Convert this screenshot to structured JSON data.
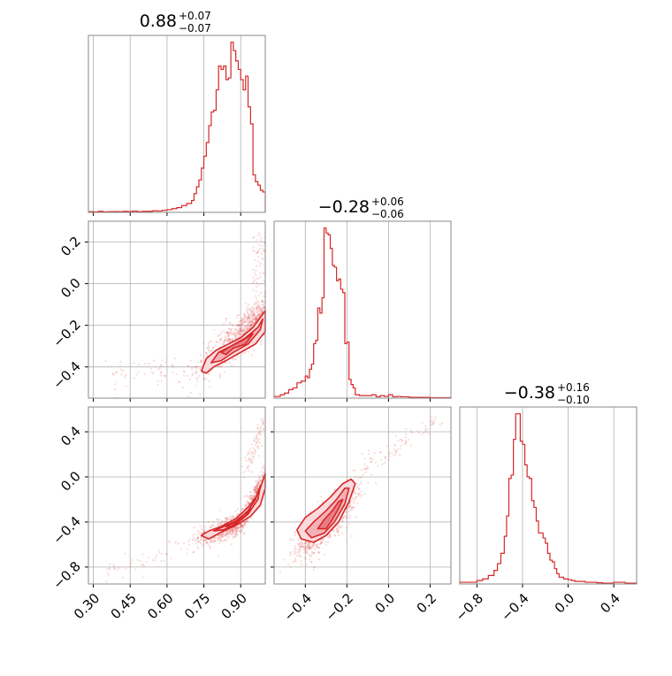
{
  "figure": {
    "panel_titles": [
      {
        "value": "0.88",
        "plus": "+0.07",
        "minus": "−0.07"
      },
      {
        "value": "−0.28",
        "plus": "+0.06",
        "minus": "−0.06"
      },
      {
        "value": "−0.38",
        "plus": "+0.16",
        "minus": "−0.10"
      }
    ],
    "colors": {
      "accent": "#d62728",
      "fill": "#f2b5b8",
      "grid": "#b0b0b0",
      "frame": "#888888"
    },
    "grid": true
  },
  "chart_data": [
    {
      "type": "histogram",
      "panel": "p1 marginal",
      "x_range": [
        0.28,
        1.0
      ],
      "x_ticks": [
        0.3,
        0.45,
        0.6,
        0.75,
        0.9
      ],
      "bin_edges": [
        0.28,
        0.3,
        0.32,
        0.34,
        0.36,
        0.38,
        0.4,
        0.42,
        0.44,
        0.46,
        0.48,
        0.5,
        0.52,
        0.54,
        0.56,
        0.58,
        0.6,
        0.62,
        0.64,
        0.66,
        0.68,
        0.7,
        0.71,
        0.72,
        0.73,
        0.74,
        0.75,
        0.76,
        0.77,
        0.78,
        0.79,
        0.8,
        0.81,
        0.82,
        0.83,
        0.84,
        0.85,
        0.86,
        0.87,
        0.88,
        0.89,
        0.9,
        0.91,
        0.92,
        0.93,
        0.94,
        0.95,
        0.96,
        0.97,
        0.98,
        0.99,
        1.0
      ],
      "counts": [
        0.4,
        0.3,
        0.6,
        0.3,
        0.4,
        0.5,
        0.4,
        0.6,
        0.5,
        0.7,
        0.4,
        0.6,
        0.6,
        0.9,
        0.8,
        1.2,
        1.6,
        2.2,
        2.8,
        4,
        5.2,
        7,
        11,
        15,
        19,
        26,
        33,
        41,
        51,
        59,
        60,
        72,
        86,
        84,
        86,
        78,
        79,
        100,
        95,
        89,
        84,
        78,
        72,
        80,
        62,
        52,
        22,
        18,
        16,
        13,
        12
      ],
      "ylim": [
        0,
        104
      ]
    },
    {
      "type": "histogram",
      "panel": "p2 marginal",
      "x_range": [
        -0.55,
        0.3
      ],
      "x_ticks": [
        -0.4,
        -0.2,
        0.0,
        0.2
      ],
      "bin_edges": [
        -0.55,
        -0.52,
        -0.5,
        -0.48,
        -0.46,
        -0.44,
        -0.42,
        -0.4,
        -0.39,
        -0.38,
        -0.37,
        -0.36,
        -0.35,
        -0.34,
        -0.33,
        -0.32,
        -0.31,
        -0.3,
        -0.29,
        -0.28,
        -0.27,
        -0.26,
        -0.25,
        -0.24,
        -0.23,
        -0.22,
        -0.21,
        -0.2,
        -0.19,
        -0.18,
        -0.17,
        -0.16,
        -0.14,
        -0.12,
        -0.1,
        -0.08,
        -0.06,
        -0.04,
        -0.02,
        0.0,
        0.02,
        0.04,
        0.06,
        0.08,
        0.1,
        0.15,
        0.2,
        0.3
      ],
      "counts": [
        1,
        2,
        3,
        5,
        6,
        9,
        10,
        13,
        12,
        17,
        20,
        32,
        34,
        53,
        50,
        59,
        100,
        97,
        96,
        88,
        78,
        77,
        69,
        70,
        64,
        62,
        32,
        33,
        11,
        8,
        6,
        2,
        1.5,
        1.5,
        1.5,
        2,
        0.8,
        1.5,
        1,
        2,
        0.8,
        1,
        0.8,
        0.8,
        0.5,
        0.5,
        0.3
      ],
      "ylim": [
        0,
        104
      ]
    },
    {
      "type": "histogram",
      "panel": "p3 marginal",
      "x_range": [
        -0.95,
        0.6
      ],
      "x_ticks": [
        -0.8,
        -0.4,
        0.0,
        0.4
      ],
      "bin_edges": [
        -0.95,
        -0.9,
        -0.85,
        -0.8,
        -0.75,
        -0.7,
        -0.65,
        -0.62,
        -0.59,
        -0.56,
        -0.54,
        -0.52,
        -0.5,
        -0.48,
        -0.46,
        -0.44,
        -0.42,
        -0.4,
        -0.38,
        -0.36,
        -0.34,
        -0.32,
        -0.3,
        -0.28,
        -0.26,
        -0.24,
        -0.22,
        -0.2,
        -0.18,
        -0.16,
        -0.14,
        -0.12,
        -0.1,
        -0.08,
        -0.06,
        -0.04,
        -0.02,
        0.0,
        0.03,
        0.06,
        0.09,
        0.12,
        0.15,
        0.2,
        0.25,
        0.3,
        0.4,
        0.5,
        0.6
      ],
      "counts": [
        1,
        1,
        1,
        2,
        3,
        5,
        8,
        12,
        18,
        28,
        40,
        62,
        64,
        85,
        100,
        100,
        84,
        82,
        70,
        63,
        62,
        49,
        45,
        37,
        30,
        30,
        27,
        24,
        18,
        14,
        13,
        9,
        6,
        4,
        4,
        3,
        3,
        2.5,
        2,
        1.5,
        1.5,
        1.5,
        1,
        1,
        0.7,
        0.5,
        1,
        0.5
      ],
      "ylim": [
        0,
        104
      ]
    },
    {
      "type": "contour-scatter",
      "panel": "p1 vs p2",
      "x_range": [
        0.28,
        1.0
      ],
      "y_range": [
        -0.55,
        0.3
      ],
      "x_ticks": [
        0.3,
        0.45,
        0.6,
        0.75,
        0.9
      ],
      "y_ticks": [
        -0.4,
        -0.2,
        0.0,
        0.2
      ],
      "contour_levels": [
        {
          "fill": "#fadadd",
          "points": [
            [
              0.74,
              -0.42
            ],
            [
              0.76,
              -0.36
            ],
            [
              0.8,
              -0.32
            ],
            [
              0.85,
              -0.29
            ],
            [
              0.9,
              -0.26
            ],
            [
              0.95,
              -0.21
            ],
            [
              1.0,
              -0.13
            ],
            [
              1.0,
              -0.23
            ],
            [
              0.96,
              -0.29
            ],
            [
              0.9,
              -0.33
            ],
            [
              0.84,
              -0.37
            ],
            [
              0.79,
              -0.4
            ],
            [
              0.76,
              -0.43
            ]
          ]
        },
        {
          "fill": "#f3b2b7",
          "points": [
            [
              0.78,
              -0.38
            ],
            [
              0.81,
              -0.33
            ],
            [
              0.86,
              -0.3
            ],
            [
              0.92,
              -0.26
            ],
            [
              0.97,
              -0.21
            ],
            [
              0.99,
              -0.17
            ],
            [
              0.98,
              -0.22
            ],
            [
              0.93,
              -0.29
            ],
            [
              0.87,
              -0.33
            ],
            [
              0.82,
              -0.37
            ]
          ]
        },
        {
          "fill": "#e77d86",
          "points": [
            [
              0.82,
              -0.33
            ],
            [
              0.86,
              -0.3
            ],
            [
              0.91,
              -0.27
            ],
            [
              0.95,
              -0.24
            ],
            [
              0.92,
              -0.29
            ],
            [
              0.87,
              -0.31
            ],
            [
              0.84,
              -0.34
            ]
          ]
        }
      ]
    },
    {
      "type": "contour-scatter",
      "panel": "p1 vs p3",
      "x_range": [
        0.28,
        1.0
      ],
      "y_range": [
        -0.95,
        0.62
      ],
      "x_ticks": [
        0.3,
        0.45,
        0.6,
        0.75,
        0.9
      ],
      "y_ticks": [
        -0.8,
        -0.4,
        0.0,
        0.4
      ],
      "contour_levels": [
        {
          "fill": "#fadadd",
          "points": [
            [
              0.74,
              -0.52
            ],
            [
              0.77,
              -0.48
            ],
            [
              0.82,
              -0.44
            ],
            [
              0.88,
              -0.37
            ],
            [
              0.93,
              -0.27
            ],
            [
              0.97,
              -0.16
            ],
            [
              1.0,
              0.03
            ],
            [
              1.0,
              -0.1
            ],
            [
              0.98,
              -0.25
            ],
            [
              0.94,
              -0.35
            ],
            [
              0.88,
              -0.43
            ],
            [
              0.82,
              -0.49
            ],
            [
              0.77,
              -0.55
            ]
          ]
        },
        {
          "fill": "#f3b2b7",
          "points": [
            [
              0.79,
              -0.48
            ],
            [
              0.83,
              -0.44
            ],
            [
              0.88,
              -0.39
            ],
            [
              0.93,
              -0.3
            ],
            [
              0.96,
              -0.2
            ],
            [
              0.98,
              -0.08
            ],
            [
              0.97,
              -0.2
            ],
            [
              0.93,
              -0.33
            ],
            [
              0.88,
              -0.42
            ],
            [
              0.83,
              -0.47
            ]
          ]
        },
        {
          "fill": "#e77d86",
          "points": [
            [
              0.84,
              -0.44
            ],
            [
              0.88,
              -0.4
            ],
            [
              0.92,
              -0.34
            ],
            [
              0.94,
              -0.27
            ],
            [
              0.93,
              -0.33
            ],
            [
              0.89,
              -0.4
            ],
            [
              0.86,
              -0.44
            ]
          ]
        }
      ]
    },
    {
      "type": "contour-scatter",
      "panel": "p2 vs p3",
      "x_range": [
        -0.55,
        0.3
      ],
      "y_range": [
        -0.95,
        0.62
      ],
      "x_ticks": [
        -0.4,
        -0.2,
        0.0,
        0.2
      ],
      "y_ticks": [
        -0.8,
        -0.4,
        0.0,
        0.4
      ],
      "contour_levels": [
        {
          "fill": "#fadadd",
          "points": [
            [
              -0.44,
              -0.47
            ],
            [
              -0.42,
              -0.55
            ],
            [
              -0.36,
              -0.58
            ],
            [
              -0.3,
              -0.52
            ],
            [
              -0.24,
              -0.4
            ],
            [
              -0.19,
              -0.22
            ],
            [
              -0.16,
              -0.06
            ],
            [
              -0.18,
              -0.02
            ],
            [
              -0.22,
              -0.06
            ],
            [
              -0.28,
              -0.18
            ],
            [
              -0.34,
              -0.28
            ],
            [
              -0.4,
              -0.36
            ]
          ]
        },
        {
          "fill": "#f3b2b7",
          "points": [
            [
              -0.4,
              -0.48
            ],
            [
              -0.37,
              -0.54
            ],
            [
              -0.31,
              -0.5
            ],
            [
              -0.26,
              -0.4
            ],
            [
              -0.21,
              -0.24
            ],
            [
              -0.19,
              -0.1
            ],
            [
              -0.21,
              -0.1
            ],
            [
              -0.25,
              -0.2
            ],
            [
              -0.3,
              -0.3
            ],
            [
              -0.36,
              -0.4
            ]
          ]
        },
        {
          "fill": "#e77d86",
          "points": [
            [
              -0.34,
              -0.46
            ],
            [
              -0.3,
              -0.46
            ],
            [
              -0.27,
              -0.38
            ],
            [
              -0.24,
              -0.28
            ],
            [
              -0.22,
              -0.2
            ],
            [
              -0.24,
              -0.22
            ],
            [
              -0.27,
              -0.3
            ],
            [
              -0.31,
              -0.38
            ]
          ]
        }
      ]
    }
  ]
}
